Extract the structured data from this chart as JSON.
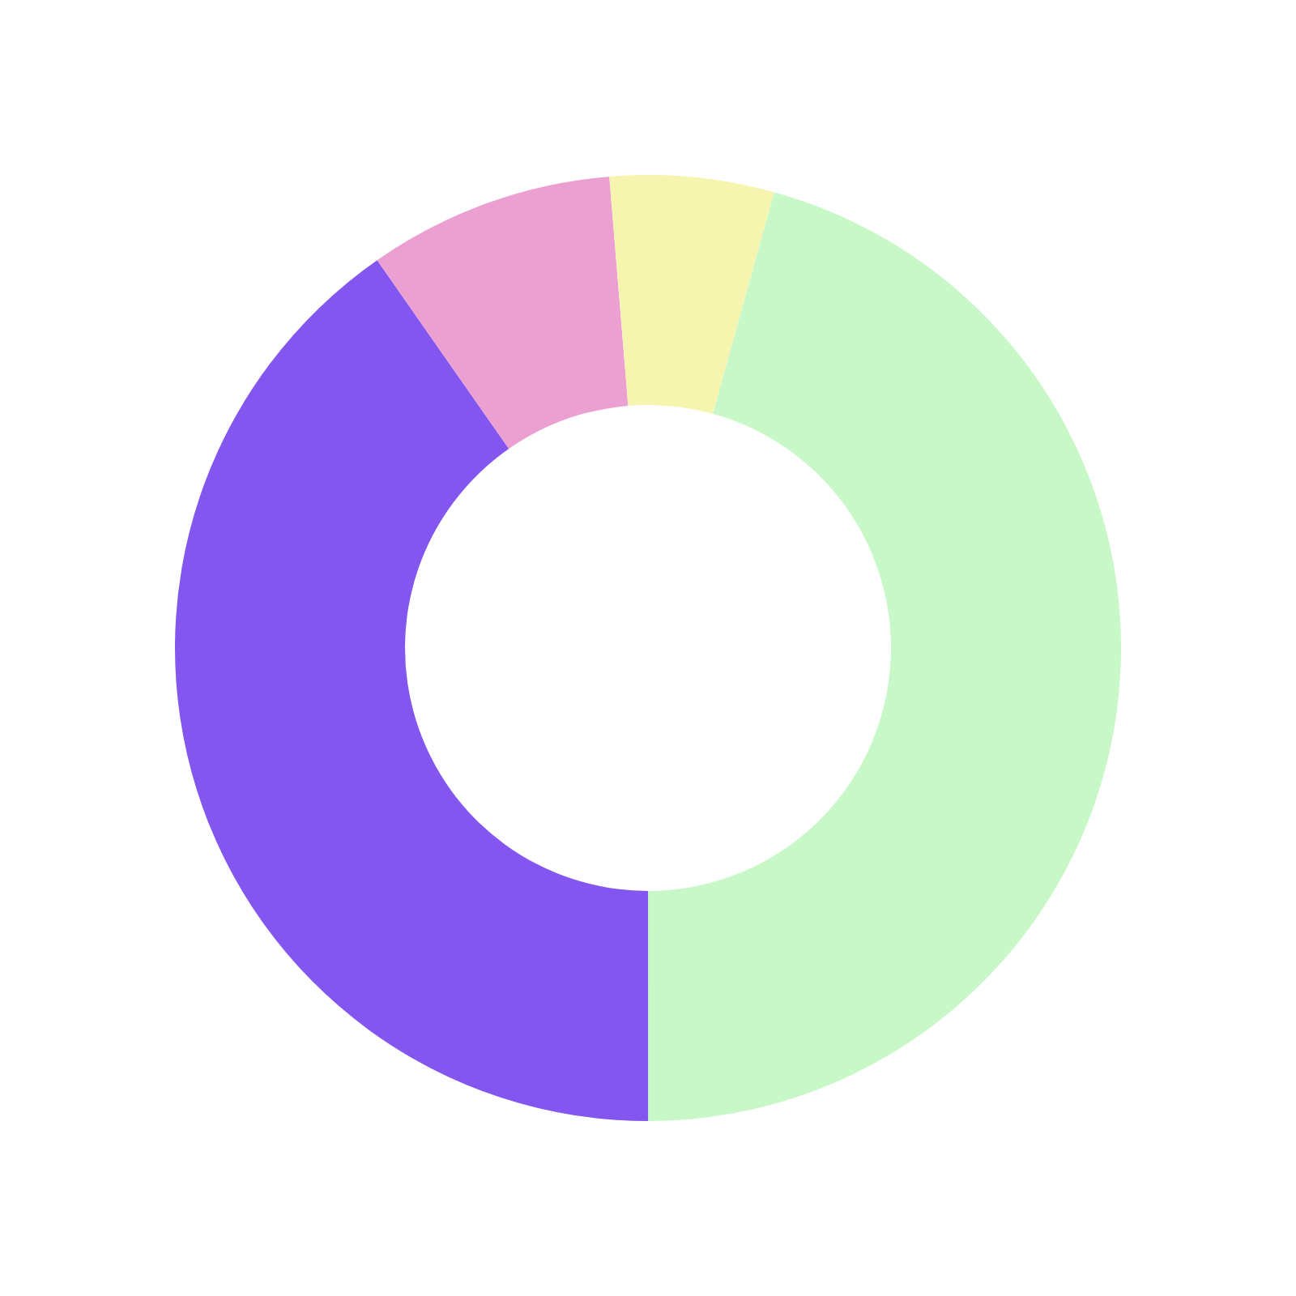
{
  "chart_data": {
    "type": "donut",
    "categories": [
      null,
      null,
      null,
      null
    ],
    "values": [
      45.7,
      40.3,
      8.4,
      5.6
    ],
    "colors": [
      "#c8f8c8",
      "#8356f0",
      "#eca0d2",
      "#f5f5b0"
    ]
  }
}
